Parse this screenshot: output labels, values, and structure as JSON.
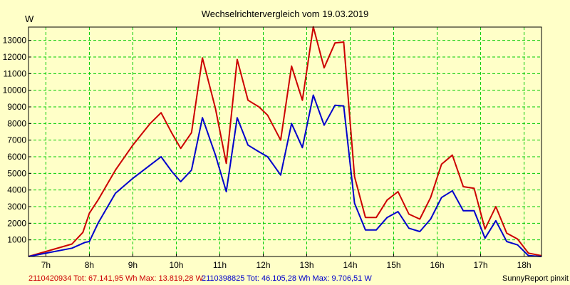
{
  "chart_data": {
    "type": "line",
    "title": "Wechselrichtervergleich vom 19.03.2019",
    "ylabel": "W",
    "xlabel": "",
    "ylim": [
      0,
      13800
    ],
    "xlim": [
      6.6,
      18.4
    ],
    "grid": true,
    "yticks": [
      1000,
      2000,
      3000,
      4000,
      5000,
      6000,
      7000,
      8000,
      9000,
      10000,
      11000,
      12000,
      13000
    ],
    "ytick_labels": [
      "1000",
      "2000",
      "3000",
      "4000",
      "5000",
      "6000",
      "7000",
      "8000",
      "9000",
      "10000",
      "11000",
      "12000",
      "13000"
    ],
    "xticks": [
      7,
      8,
      9,
      10,
      11,
      12,
      13,
      14,
      15,
      16,
      17,
      18
    ],
    "xtick_labels": [
      "7h",
      "8h",
      "9h",
      "10h",
      "11h",
      "12h",
      "13h",
      "14h",
      "15h",
      "16h",
      "17h",
      "18h"
    ],
    "series": [
      {
        "name": "2110420934",
        "legend_text": "2110420934 Tot: 67.141,95 Wh Max: 13.819,28 W",
        "color": "#cc0000",
        "x": [
          6.6,
          7.6,
          7.85,
          8.0,
          8.2,
          8.6,
          9.0,
          9.4,
          9.65,
          9.9,
          10.1,
          10.35,
          10.6,
          10.9,
          11.15,
          11.4,
          11.65,
          11.9,
          12.1,
          12.4,
          12.65,
          12.9,
          13.15,
          13.4,
          13.65,
          13.85,
          14.1,
          14.35,
          14.6,
          14.85,
          15.1,
          15.35,
          15.6,
          15.85,
          16.1,
          16.35,
          16.6,
          16.85,
          17.1,
          17.35,
          17.6,
          17.85,
          18.1,
          18.4
        ],
        "y": [
          0,
          750,
          1450,
          2600,
          3400,
          5200,
          6700,
          8000,
          8650,
          7400,
          6500,
          7450,
          11950,
          8900,
          5600,
          11850,
          9400,
          9000,
          8500,
          7000,
          11450,
          9400,
          13819,
          11350,
          12850,
          12900,
          4800,
          2350,
          2350,
          3400,
          3900,
          2550,
          2250,
          3550,
          5550,
          6100,
          4200,
          4100,
          1650,
          3000,
          1400,
          1050,
          200,
          50
        ]
      },
      {
        "name": "2110398825",
        "legend_text": "2110398825 Tot: 46.105,28 Wh Max: 9.706,51 W",
        "color": "#0000cc",
        "x": [
          6.6,
          7.6,
          7.9,
          8.0,
          8.2,
          8.6,
          9.0,
          9.4,
          9.65,
          9.9,
          10.1,
          10.35,
          10.6,
          10.9,
          11.15,
          11.4,
          11.65,
          11.9,
          12.1,
          12.4,
          12.65,
          12.9,
          13.15,
          13.4,
          13.65,
          13.85,
          14.1,
          14.35,
          14.6,
          14.85,
          15.1,
          15.35,
          15.6,
          15.85,
          16.1,
          16.35,
          16.6,
          16.85,
          17.1,
          17.35,
          17.6,
          17.85,
          18.1,
          18.4
        ],
        "y": [
          0,
          500,
          850,
          900,
          2000,
          3800,
          4700,
          5500,
          6000,
          5100,
          4500,
          5200,
          8350,
          6100,
          3900,
          8350,
          6700,
          6300,
          6000,
          4900,
          8000,
          6550,
          9707,
          7900,
          9100,
          9050,
          3200,
          1600,
          1600,
          2350,
          2700,
          1700,
          1500,
          2250,
          3550,
          3950,
          2750,
          2750,
          1100,
          2150,
          900,
          700,
          50,
          0
        ]
      }
    ],
    "credit": "SunnyReport pinxit"
  }
}
